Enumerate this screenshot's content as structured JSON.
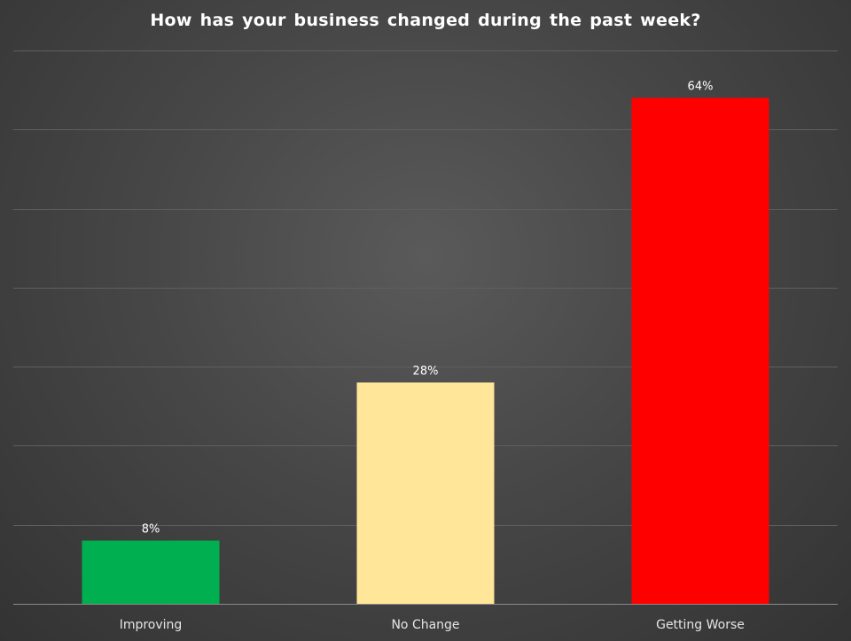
{
  "chart_data": {
    "type": "bar",
    "title": "How has your business changed during the past week?",
    "xlabel": "",
    "ylabel": "",
    "categories": [
      "Improving",
      "No Change",
      "Getting Worse"
    ],
    "values": [
      8,
      28,
      64
    ],
    "value_labels": [
      "8%",
      "28%",
      "64%"
    ],
    "colors": [
      "#00b050",
      "#ffe699",
      "#ff0000"
    ],
    "ylim": [
      0,
      70
    ],
    "grid": true,
    "legend": "none"
  }
}
